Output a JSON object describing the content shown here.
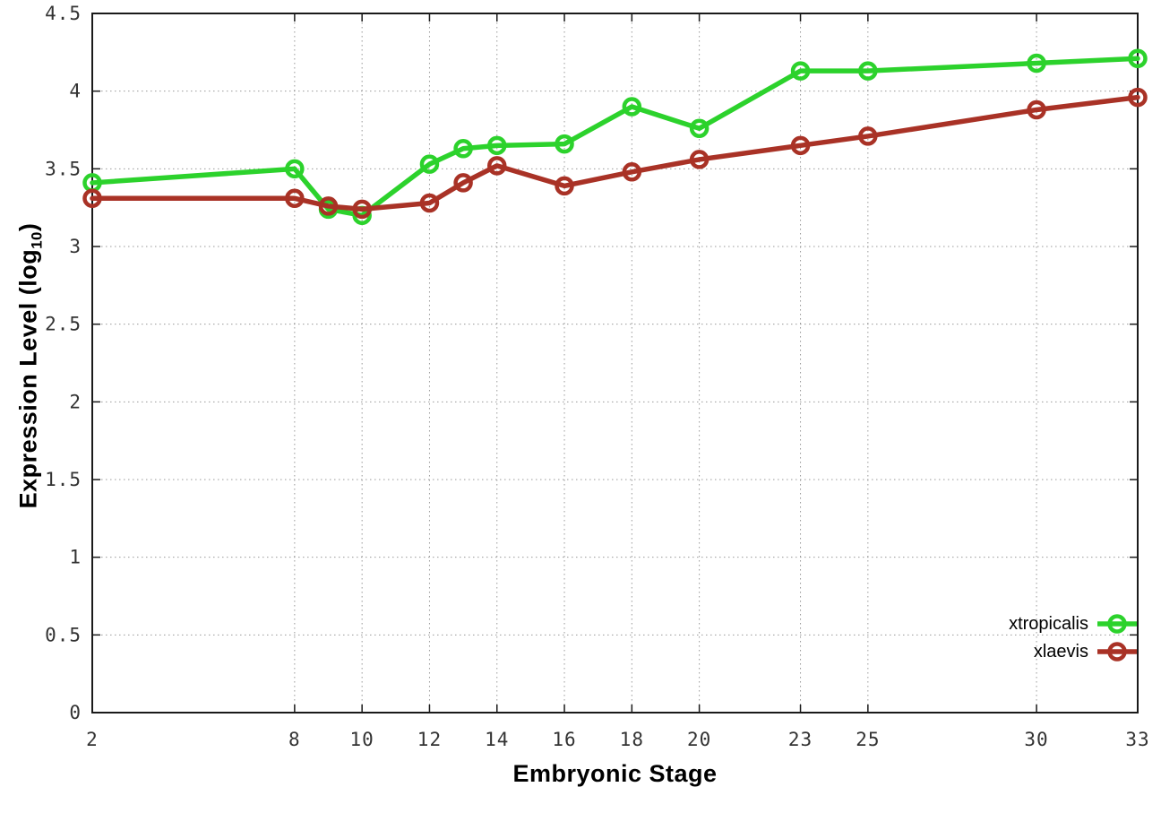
{
  "chart_data": {
    "type": "line",
    "x": [
      2,
      8,
      9,
      10,
      12,
      13,
      14,
      16,
      18,
      20,
      23,
      25,
      30,
      33
    ],
    "series": [
      {
        "name": "xtropicalis",
        "color": "#2cd22c",
        "values": [
          3.41,
          3.5,
          3.24,
          3.2,
          3.53,
          3.63,
          3.65,
          3.66,
          3.9,
          3.76,
          4.13,
          4.13,
          4.18,
          4.21
        ]
      },
      {
        "name": "xlaevis",
        "color": "#a93226",
        "values": [
          3.31,
          3.31,
          3.26,
          3.24,
          3.28,
          3.41,
          3.52,
          3.39,
          3.48,
          3.56,
          3.65,
          3.71,
          3.88,
          3.96
        ]
      }
    ],
    "xlabel": "Embryonic Stage",
    "ylabel": {
      "prefix": "Expression Level (log",
      "sub": "10",
      "suffix": ")",
      "text": "Expression Level (log10)"
    },
    "x_ticks": [
      2,
      8,
      10,
      12,
      14,
      16,
      18,
      20,
      23,
      25,
      30,
      33
    ],
    "y_ticks": [
      0,
      0.5,
      1,
      1.5,
      2,
      2.5,
      3,
      3.5,
      4,
      4.5
    ],
    "xlim": [
      2,
      33
    ],
    "ylim": [
      0,
      4.5
    ],
    "grid": true,
    "legend_position": "inside bottom-right",
    "marker": "open-circle",
    "grid_color": "#999999",
    "border_color": "#1a1a1a",
    "tick_label_color": "#333333"
  }
}
